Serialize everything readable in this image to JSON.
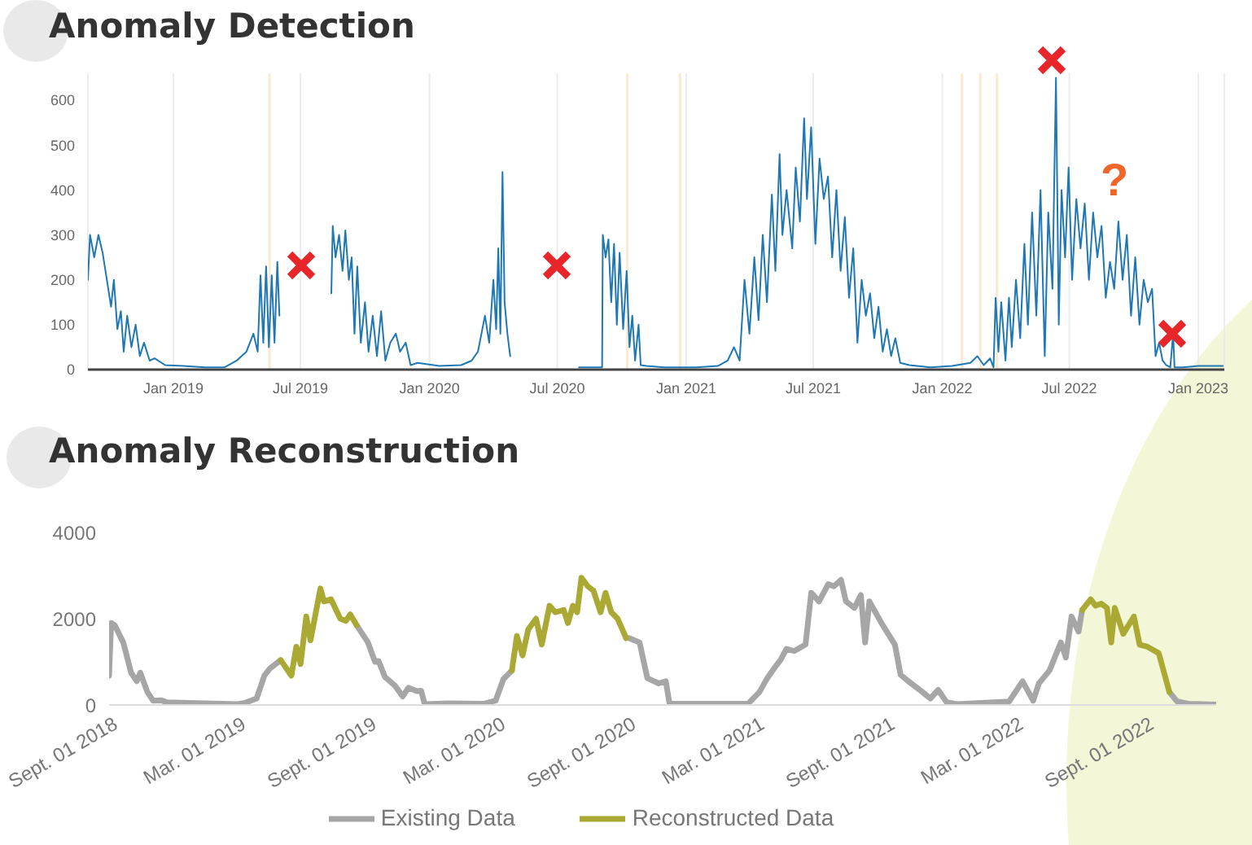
{
  "chart_data": [
    {
      "type": "line",
      "title": "Anomaly Detection",
      "xlim": [
        "2018-09-01",
        "2023-02-07"
      ],
      "ylim": [
        0,
        660
      ],
      "yticks": [
        0,
        100,
        200,
        300,
        400,
        500,
        600
      ],
      "xticks": [
        {
          "value": "2019-01-01",
          "label": "Jan 2019"
        },
        {
          "value": "2019-07-01",
          "label": "Jul 2019"
        },
        {
          "value": "2020-01-01",
          "label": "Jan 2020"
        },
        {
          "value": "2020-07-01",
          "label": "Jul 2020"
        },
        {
          "value": "2021-01-01",
          "label": "Jan 2021"
        },
        {
          "value": "2021-07-01",
          "label": "Jul 2021"
        },
        {
          "value": "2022-01-01",
          "label": "Jan 2022"
        },
        {
          "value": "2022-07-01",
          "label": "Jul 2022"
        },
        {
          "value": "2023-01-01",
          "label": "Jan 2023"
        }
      ],
      "grid": "x",
      "legend": false,
      "marker": "none",
      "line_style": "solid",
      "ref_lines": [
        {
          "axis": "x",
          "value": "2019-05-18",
          "color": "#fbe9d0"
        },
        {
          "axis": "x",
          "value": "2020-10-09",
          "color": "#fbe9d0"
        },
        {
          "axis": "x",
          "value": "2020-12-23",
          "color": "#fbe9d0"
        },
        {
          "axis": "x",
          "value": "2022-01-29",
          "color": "#fbe9d0"
        },
        {
          "axis": "x",
          "value": "2022-02-24",
          "color": "#fbe9d0"
        },
        {
          "axis": "x",
          "value": "2022-03-20",
          "color": "#fbe9d0"
        }
      ],
      "annotations": [
        "?"
      ],
      "series": [
        {
          "color": "#1f77b4",
          "x": [
            "2018-09-01",
            "2018-09-04",
            "2018-09-10",
            "2018-09-16",
            "2018-09-22",
            "2018-09-28",
            "2018-10-04",
            "2018-10-08",
            "2018-10-13",
            "2018-10-18",
            "2018-10-22",
            "2018-10-27",
            "2018-11-02",
            "2018-11-08",
            "2018-11-14",
            "2018-11-20",
            "2018-11-28",
            "2018-12-05",
            "2018-12-20",
            "2019-01-15",
            "2019-02-15",
            "2019-03-15",
            "2019-04-01",
            "2019-04-15",
            "2019-04-25",
            "2019-05-01",
            "2019-05-05",
            "2019-05-09",
            "2019-05-13",
            "2019-05-17",
            "2019-05-21",
            "2019-05-25",
            "2019-05-29",
            "2019-06-01",
            "2019-07-01",
            "2019-08-14",
            "2019-08-16",
            "2019-08-20",
            "2019-08-25",
            "2019-08-30",
            "2019-09-03",
            "2019-09-08",
            "2019-09-12",
            "2019-09-16",
            "2019-09-20",
            "2019-09-25",
            "2019-10-01",
            "2019-10-06",
            "2019-10-12",
            "2019-10-18",
            "2019-10-24",
            "2019-10-30",
            "2019-11-06",
            "2019-11-14",
            "2019-11-20",
            "2019-11-28",
            "2019-12-05",
            "2019-12-15",
            "2020-01-15",
            "2020-02-15",
            "2020-03-01",
            "2020-03-10",
            "2020-03-20",
            "2020-03-26",
            "2020-04-01",
            "2020-04-05",
            "2020-04-08",
            "2020-04-11",
            "2020-04-14",
            "2020-04-17",
            "2020-04-21",
            "2020-04-25",
            "2020-06-15",
            "2020-08-01",
            "2020-09-03",
            "2020-09-04",
            "2020-09-08",
            "2020-09-12",
            "2020-09-16",
            "2020-09-20",
            "2020-09-24",
            "2020-09-28",
            "2020-10-03",
            "2020-10-08",
            "2020-10-12",
            "2020-10-16",
            "2020-10-20",
            "2020-10-25",
            "2020-10-28",
            "2020-11-05",
            "2020-12-01",
            "2021-01-15",
            "2021-02-15",
            "2021-03-01",
            "2021-03-10",
            "2021-03-18",
            "2021-03-25",
            "2021-04-01",
            "2021-04-08",
            "2021-04-14",
            "2021-04-20",
            "2021-04-26",
            "2021-05-03",
            "2021-05-08",
            "2021-05-14",
            "2021-05-18",
            "2021-05-24",
            "2021-06-01",
            "2021-06-06",
            "2021-06-12",
            "2021-06-18",
            "2021-06-22",
            "2021-06-28",
            "2021-07-04",
            "2021-07-10",
            "2021-07-16",
            "2021-07-22",
            "2021-07-28",
            "2021-08-03",
            "2021-08-09",
            "2021-08-15",
            "2021-08-21",
            "2021-08-27",
            "2021-09-02",
            "2021-09-08",
            "2021-09-14",
            "2021-09-20",
            "2021-09-26",
            "2021-10-02",
            "2021-10-08",
            "2021-10-14",
            "2021-10-20",
            "2021-10-26",
            "2021-11-02",
            "2021-11-15",
            "2021-12-15",
            "2022-01-15",
            "2022-02-10",
            "2022-02-20",
            "2022-03-01",
            "2022-03-10",
            "2022-03-15",
            "2022-03-18",
            "2022-03-22",
            "2022-03-26",
            "2022-04-01",
            "2022-04-06",
            "2022-04-10",
            "2022-04-16",
            "2022-04-22",
            "2022-04-28",
            "2022-05-03",
            "2022-05-09",
            "2022-05-15",
            "2022-05-21",
            "2022-05-27",
            "2022-06-01",
            "2022-06-07",
            "2022-06-12",
            "2022-06-16",
            "2022-06-20",
            "2022-06-25",
            "2022-06-30",
            "2022-07-05",
            "2022-07-11",
            "2022-07-17",
            "2022-07-23",
            "2022-07-29",
            "2022-08-04",
            "2022-08-10",
            "2022-08-16",
            "2022-08-22",
            "2022-08-28",
            "2022-09-03",
            "2022-09-09",
            "2022-09-15",
            "2022-09-21",
            "2022-09-27",
            "2022-10-03",
            "2022-10-09",
            "2022-10-15",
            "2022-10-21",
            "2022-10-27",
            "2022-11-01",
            "2022-11-06",
            "2022-11-11",
            "2022-11-16",
            "2022-11-22",
            "2022-11-26",
            "2022-11-28",
            "2022-12-10",
            "2023-01-01",
            "2023-02-05"
          ],
          "values": [
            200,
            300,
            250,
            300,
            260,
            200,
            140,
            200,
            90,
            130,
            40,
            120,
            50,
            100,
            30,
            60,
            20,
            25,
            10,
            8,
            5,
            5,
            20,
            40,
            80,
            40,
            210,
            60,
            230,
            50,
            210,
            60,
            240,
            120,
            null,
            170,
            320,
            250,
            300,
            220,
            310,
            200,
            250,
            80,
            230,
            60,
            150,
            40,
            120,
            30,
            130,
            20,
            60,
            80,
            40,
            60,
            10,
            15,
            8,
            10,
            20,
            40,
            120,
            60,
            200,
            90,
            270,
            80,
            440,
            150,
            80,
            30,
            null,
            5,
            5,
            300,
            250,
            290,
            150,
            280,
            100,
            260,
            90,
            220,
            50,
            120,
            20,
            100,
            10,
            8,
            5,
            5,
            8,
            20,
            50,
            20,
            200,
            80,
            250,
            110,
            300,
            150,
            390,
            220,
            480,
            300,
            400,
            270,
            450,
            330,
            560,
            380,
            540,
            280,
            470,
            380,
            430,
            250,
            400,
            220,
            340,
            160,
            270,
            60,
            200,
            120,
            170,
            70,
            140,
            40,
            90,
            30,
            70,
            15,
            10,
            5,
            8,
            15,
            30,
            10,
            25,
            5,
            160,
            40,
            150,
            20,
            160,
            50,
            200,
            70,
            280,
            100,
            350,
            120,
            400,
            30,
            350,
            180,
            650,
            100,
            400,
            250,
            450,
            200,
            380,
            270,
            370,
            200,
            350,
            250,
            320,
            160,
            240,
            180,
            330,
            200,
            300,
            120,
            250,
            100,
            200,
            150,
            180,
            30,
            60,
            20,
            10,
            5,
            80,
            5,
            5,
            8,
            8
          ]
        }
      ]
    },
    {
      "type": "line",
      "title": "Anomaly Reconstruction",
      "xlim": [
        "2018-09-01",
        "2022-12-10"
      ],
      "ylim": [
        0,
        4000
      ],
      "yticks": [
        0,
        2000,
        4000
      ],
      "xticks": [
        {
          "value": "2018-09-01",
          "label": "Sept. 01 2018"
        },
        {
          "value": "2019-03-01",
          "label": "Mar. 01 2019"
        },
        {
          "value": "2019-09-01",
          "label": "Sept. 01 2019"
        },
        {
          "value": "2020-03-01",
          "label": "Mar. 01 2020"
        },
        {
          "value": "2020-09-01",
          "label": "Sept. 01 2020"
        },
        {
          "value": "2021-03-01",
          "label": "Mar. 01 2021"
        },
        {
          "value": "2021-09-01",
          "label": "Sept. 01 2021"
        },
        {
          "value": "2022-03-01",
          "label": "Mar. 01 2022"
        },
        {
          "value": "2022-09-01",
          "label": "Sept. 01 2022"
        }
      ],
      "grid": false,
      "legend": "bottom",
      "marker": "none",
      "line_style": "solid",
      "series": [
        {
          "name": "Existing Data",
          "color": "#a6a6a6",
          "x": [
            "2018-09-01",
            "2018-09-04",
            "2018-09-09",
            "2018-09-21",
            "2018-10-02",
            "2018-10-10",
            "2018-10-15",
            "2018-10-25",
            "2018-11-02",
            "2018-11-14",
            "2018-11-21",
            "2019-01-15",
            "2019-03-01",
            "2019-03-12",
            "2019-03-28",
            "2019-04-08",
            "2019-04-16",
            "2019-05-01",
            "2019-06-15",
            "2019-08-16",
            "2019-09-01",
            "2019-09-11",
            "2019-09-16",
            "2019-09-25",
            "2019-10-09",
            "2019-10-20",
            "2019-10-28",
            "2019-11-09",
            "2019-11-15",
            "2019-11-20",
            "2019-12-25",
            "2020-02-12",
            "2020-02-28",
            "2020-03-10",
            "2020-03-22",
            "2020-06-15",
            "2020-08-30",
            "2020-09-03",
            "2020-09-18",
            "2020-09-29",
            "2020-10-15",
            "2020-10-25",
            "2020-10-30",
            "2020-11-11",
            "2021-02-18",
            "2021-03-06",
            "2021-03-17",
            "2021-03-29",
            "2021-04-05",
            "2021-04-13",
            "2021-04-24",
            "2021-05-10",
            "2021-05-18",
            "2021-05-29",
            "2021-06-11",
            "2021-06-19",
            "2021-06-29",
            "2021-07-06",
            "2021-07-18",
            "2021-07-27",
            "2021-08-02",
            "2021-08-08",
            "2021-08-25",
            "2021-09-13",
            "2021-09-21",
            "2021-10-02",
            "2021-10-18",
            "2021-11-02",
            "2021-11-13",
            "2021-11-25",
            "2021-12-10",
            "2022-02-21",
            "2022-03-12",
            "2022-03-27",
            "2022-04-04",
            "2022-04-19",
            "2022-05-05",
            "2022-05-12",
            "2022-05-20",
            "2022-05-30",
            "2022-06-04",
            "2022-08-01",
            "2022-10-05",
            "2022-10-16",
            "2022-11-01",
            "2022-12-09"
          ],
          "values": [
            680,
            1900,
            1850,
            1450,
            750,
            550,
            750,
            300,
            100,
            110,
            60,
            40,
            20,
            50,
            150,
            680,
            850,
            1040,
            null,
            1850,
            1450,
            1000,
            1020,
            650,
            450,
            200,
            400,
            320,
            330,
            20,
            40,
            30,
            100,
            600,
            800,
            null,
            1550,
            1550,
            1450,
            620,
            500,
            550,
            50,
            30,
            30,
            300,
            620,
            900,
            1050,
            1300,
            1250,
            1400,
            2600,
            2400,
            2800,
            2750,
            2900,
            2400,
            2250,
            2550,
            1450,
            2400,
            1900,
            1400,
            700,
            550,
            350,
            150,
            350,
            60,
            20,
            80,
            550,
            100,
            500,
            800,
            1450,
            1100,
            2050,
            1700,
            2200,
            null,
            300,
            80,
            30,
            10
          ]
        },
        {
          "name": "Reconstructed Data",
          "color": "#a9a934",
          "x": [
            "2019-05-01",
            "2019-05-16",
            "2019-05-23",
            "2019-05-29",
            "2019-06-06",
            "2019-06-12",
            "2019-06-26",
            "2019-07-01",
            "2019-07-11",
            "2019-07-24",
            "2019-08-01",
            "2019-08-07",
            "2019-08-16",
            "2019-12-01",
            "2020-03-22",
            "2020-03-29",
            "2020-04-06",
            "2020-04-14",
            "2020-04-25",
            "2020-05-03",
            "2020-05-14",
            "2020-05-22",
            "2020-06-03",
            "2020-06-09",
            "2020-06-16",
            "2020-06-22",
            "2020-06-28",
            "2020-07-07",
            "2020-07-15",
            "2020-07-25",
            "2020-08-01",
            "2020-08-09",
            "2020-08-18",
            "2020-08-30",
            "2021-06-01",
            "2022-06-04",
            "2022-06-16",
            "2022-06-23",
            "2022-07-01",
            "2022-07-09",
            "2022-07-15",
            "2022-07-20",
            "2022-08-01",
            "2022-08-16",
            "2022-08-24",
            "2022-09-04",
            "2022-09-20",
            "2022-10-05"
          ],
          "values": [
            1040,
            680,
            1350,
            950,
            2050,
            1500,
            2700,
            2400,
            2450,
            2000,
            1950,
            2100,
            1850,
            null,
            800,
            1600,
            1150,
            1750,
            2000,
            1400,
            2300,
            2150,
            2200,
            1900,
            2300,
            2150,
            2950,
            2750,
            2650,
            2150,
            2600,
            2150,
            2000,
            1550,
            null,
            2200,
            2450,
            2300,
            2350,
            2250,
            1450,
            2250,
            1650,
            2050,
            1400,
            1350,
            1200,
            300
          ]
        }
      ]
    }
  ]
}
